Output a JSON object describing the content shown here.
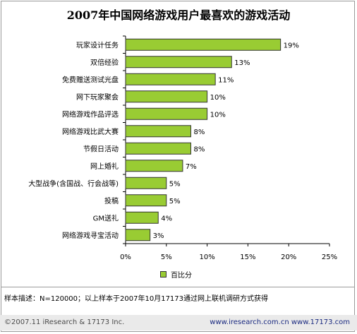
{
  "chart_data": {
    "type": "bar",
    "orientation": "horizontal",
    "title": "2007年中国网络游戏用户最喜欢的游戏活动",
    "categories": [
      "玩家设计任务",
      "双倍经验",
      "免费赠送测试光盘",
      "网下玩家聚会",
      "网络游戏作品评选",
      "网络游戏比武大赛",
      "节假日活动",
      "网上婚礼",
      "大型战争(含国战、行会战等)",
      "投稿",
      "GM送礼",
      "网络游戏寻宝活动"
    ],
    "series": [
      {
        "name": "百比分",
        "values": [
          19,
          13,
          11,
          10,
          10,
          8,
          8,
          7,
          5,
          5,
          4,
          3
        ]
      }
    ],
    "value_labels": [
      "19%",
      "13%",
      "11%",
      "10%",
      "10%",
      "8%",
      "8%",
      "7%",
      "5%",
      "5%",
      "4%",
      "3%"
    ],
    "xlim": [
      0,
      25
    ],
    "xticks": [
      "0%",
      "5%",
      "10%",
      "15%",
      "20%",
      "25%"
    ],
    "grid": false,
    "legend_position": "bottom",
    "colors": {
      "bar": "#99cc33",
      "bar_stroke": "#333333"
    }
  },
  "note": "样本描述：N=120000；以上样本于2007年10月17173通过网上联机调研方式获得",
  "footer": {
    "left": "©2007.11 iResearch & 17173 Inc.",
    "right": "www.iresearch.com.cn www.17173.com"
  }
}
